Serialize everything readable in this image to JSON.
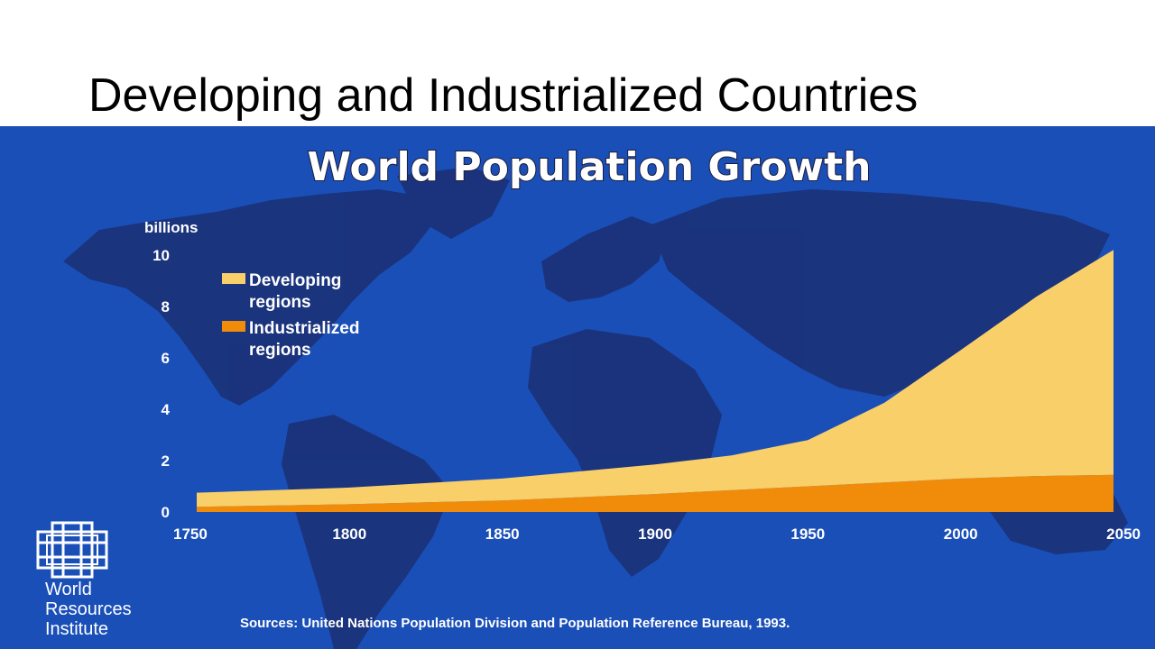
{
  "slide": {
    "title": "Developing and Industrialized Countries"
  },
  "chart_data": {
    "type": "area",
    "stacked": true,
    "title": "World Population Growth",
    "ylabel": "billions",
    "xlim": [
      1750,
      2050
    ],
    "ylim": [
      0,
      10
    ],
    "x_ticks": [
      1750,
      1800,
      1850,
      1900,
      1950,
      2000,
      2050
    ],
    "y_ticks": [
      0,
      2,
      4,
      6,
      8,
      10
    ],
    "grid": false,
    "legend_position": "top-left",
    "x": [
      1750,
      1800,
      1850,
      1900,
      1925,
      1950,
      1975,
      2000,
      2025,
      2050
    ],
    "series": [
      {
        "name": "Industrialized regions",
        "color": "#f08c0a",
        "values": [
          0.2,
          0.3,
          0.45,
          0.7,
          0.85,
          1.0,
          1.15,
          1.3,
          1.4,
          1.45
        ]
      },
      {
        "name": "Developing regions",
        "color": "#f9cf6a",
        "values": [
          0.55,
          0.65,
          0.85,
          1.15,
          1.35,
          1.8,
          3.1,
          5.0,
          7.0,
          8.75
        ]
      }
    ],
    "legend": [
      {
        "lines": [
          "Developing",
          "regions"
        ],
        "color": "#f9cf6a"
      },
      {
        "lines": [
          "Industrialized",
          "regions"
        ],
        "color": "#f08c0a"
      }
    ],
    "source": "Sources: United Nations Population Division and Population Reference Bureau, 1993."
  },
  "logo": {
    "icon": "world-resources-institute-logo-icon",
    "lines": [
      "World",
      "Resources",
      "Institute"
    ]
  },
  "colors": {
    "background": "#1a4fb8",
    "landmass": "#1b2f72"
  }
}
